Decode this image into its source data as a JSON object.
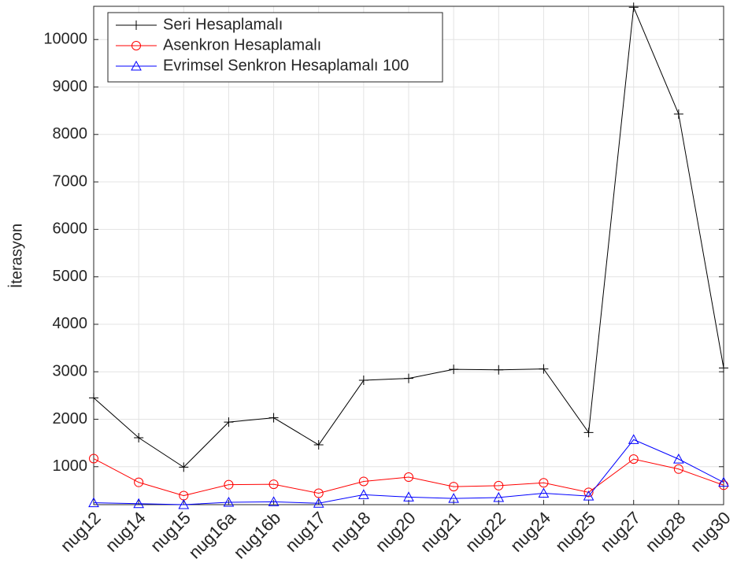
{
  "chart_data": {
    "type": "line",
    "y_label": "İterasyon",
    "categories": [
      "nug12",
      "nug14",
      "nug15",
      "nug16a",
      "nug16b",
      "nug17",
      "nug18",
      "nug20",
      "nug21",
      "nug22",
      "nug24",
      "nug25",
      "nug27",
      "nug28",
      "nug30"
    ],
    "series": [
      {
        "name": "Seri Hesaplamalı",
        "color": "#000000",
        "marker": "plus",
        "values": [
          2450,
          1610,
          990,
          1940,
          2030,
          1460,
          2820,
          2860,
          3050,
          3040,
          3060,
          1720,
          10680,
          8430,
          3080
        ]
      },
      {
        "name": "Asenkron Hesaplamalı",
        "color": "#ff0000",
        "marker": "circle",
        "values": [
          1170,
          670,
          390,
          620,
          630,
          440,
          690,
          780,
          580,
          600,
          660,
          460,
          1160,
          950,
          610
        ]
      },
      {
        "name": "Evrimsel Senkron Hesaplamalı 100",
        "color": "#0000ff",
        "marker": "triangle",
        "values": [
          240,
          220,
          200,
          250,
          260,
          230,
          410,
          360,
          330,
          350,
          440,
          380,
          1570,
          1160,
          670
        ]
      }
    ],
    "ylim": [
      200,
      10700
    ],
    "yticks": [
      1000,
      2000,
      3000,
      4000,
      5000,
      6000,
      7000,
      8000,
      9000,
      10000
    ],
    "grid": true,
    "legend": "upper-left"
  }
}
